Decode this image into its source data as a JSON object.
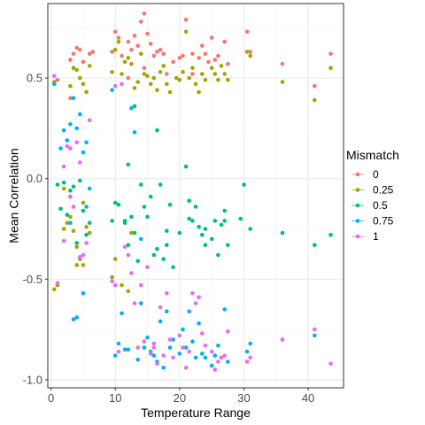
{
  "chart_data": {
    "type": "scatter",
    "title": "",
    "xlabel": "Temperature Range",
    "ylabel": "Mean Correlation",
    "xlim": [
      -0.5,
      45.5
    ],
    "ylim": [
      -1.04,
      0.87
    ],
    "xticks": [
      0,
      10,
      20,
      30,
      40
    ],
    "yticks": [
      -1.0,
      -0.5,
      0.0,
      0.5
    ],
    "xtick_labels": [
      "0",
      "10",
      "20",
      "30",
      "40"
    ],
    "ytick_labels": [
      "-1.0",
      "-0.5",
      "0.0",
      "0.5"
    ],
    "grid": true,
    "legend": {
      "title": "Mismatch",
      "position": "right"
    },
    "series": [
      {
        "name": "0",
        "color": "#F8766D",
        "points": [
          [
            1,
            0.49
          ],
          [
            3,
            0.59
          ],
          [
            3.5,
            0.62
          ],
          [
            4,
            0.65
          ],
          [
            4.5,
            0.64
          ],
          [
            5,
            0.58
          ],
          [
            6,
            0.62
          ],
          [
            6.5,
            0.63
          ],
          [
            9.5,
            0.63
          ],
          [
            10,
            0.73
          ],
          [
            10.5,
            0.7
          ],
          [
            11,
            0.61
          ],
          [
            12,
            0.68
          ],
          [
            12.5,
            0.64
          ],
          [
            13,
            0.71
          ],
          [
            13.5,
            0.66
          ],
          [
            14,
            0.78
          ],
          [
            14.5,
            0.82
          ],
          [
            15,
            0.72
          ],
          [
            15.5,
            0.67
          ],
          [
            16,
            0.61
          ],
          [
            16.5,
            0.63
          ],
          [
            17,
            0.64
          ],
          [
            17.5,
            0.62
          ],
          [
            19,
            0.58
          ],
          [
            20,
            0.6
          ],
          [
            20.5,
            0.61
          ],
          [
            21,
            0.79
          ],
          [
            22,
            0.62
          ],
          [
            23,
            0.6
          ],
          [
            23.5,
            0.66
          ],
          [
            24,
            0.62
          ],
          [
            25,
            0.7
          ],
          [
            25.5,
            0.59
          ],
          [
            26,
            0.61
          ],
          [
            27,
            0.68
          ],
          [
            27.5,
            0.57
          ],
          [
            30.5,
            0.73
          ],
          [
            31,
            0.63
          ],
          [
            36,
            0.57
          ],
          [
            41,
            0.46
          ],
          [
            43.5,
            0.62
          ],
          [
            12,
            0.5
          ],
          [
            14.5,
            0.55
          ],
          [
            18,
            0.52
          ],
          [
            22,
            0.52
          ],
          [
            24.5,
            0.58
          ],
          [
            3,
            0.4
          ]
        ]
      },
      {
        "name": "0.25",
        "color": "#A3A500",
        "points": [
          [
            0.5,
            0.48
          ],
          [
            3,
            0.46
          ],
          [
            3.5,
            0.55
          ],
          [
            4,
            0.54
          ],
          [
            4.5,
            0.5
          ],
          [
            5,
            0.47
          ],
          [
            5.5,
            0.43
          ],
          [
            6,
            0.56
          ],
          [
            9.5,
            0.53
          ],
          [
            10,
            0.64
          ],
          [
            10.5,
            0.68
          ],
          [
            11,
            0.52
          ],
          [
            11.5,
            0.58
          ],
          [
            12,
            0.6
          ],
          [
            12.5,
            0.57
          ],
          [
            13,
            0.45
          ],
          [
            13.5,
            0.48
          ],
          [
            14,
            0.62
          ],
          [
            14.5,
            0.52
          ],
          [
            15,
            0.51
          ],
          [
            15.5,
            0.47
          ],
          [
            16,
            0.5
          ],
          [
            16.5,
            0.44
          ],
          [
            17,
            0.53
          ],
          [
            17.5,
            0.56
          ],
          [
            18,
            0.47
          ],
          [
            18.5,
            0.43
          ],
          [
            19.5,
            0.5
          ],
          [
            20,
            0.49
          ],
          [
            20.5,
            0.53
          ],
          [
            21,
            0.73
          ],
          [
            21.5,
            0.5
          ],
          [
            22,
            0.55
          ],
          [
            22.5,
            0.47
          ],
          [
            23,
            0.43
          ],
          [
            23.5,
            0.52
          ],
          [
            24,
            0.49
          ],
          [
            25,
            0.55
          ],
          [
            25.5,
            0.52
          ],
          [
            26,
            0.49
          ],
          [
            26.5,
            0.56
          ],
          [
            27,
            0.52
          ],
          [
            27.5,
            0.49
          ],
          [
            30.5,
            0.63
          ],
          [
            31,
            0.61
          ],
          [
            36,
            0.48
          ],
          [
            41,
            0.39
          ],
          [
            43.5,
            0.55
          ],
          [
            0.5,
            -0.55
          ],
          [
            1,
            -0.53
          ],
          [
            2,
            -0.25
          ],
          [
            2.5,
            -0.22
          ],
          [
            3,
            -0.09
          ],
          [
            3.5,
            -0.26
          ],
          [
            4,
            -0.34
          ],
          [
            4.5,
            -0.4
          ],
          [
            5,
            -0.43
          ],
          [
            5.5,
            -0.24
          ],
          [
            6,
            -0.27
          ],
          [
            9.5,
            -0.49
          ],
          [
            10,
            -0.4
          ],
          [
            11,
            -0.53
          ],
          [
            12,
            -0.56
          ],
          [
            12.5,
            -0.27
          ],
          [
            2,
            -0.05
          ],
          [
            3,
            -0.19
          ],
          [
            4,
            -0.43
          ],
          [
            5,
            -0.12
          ]
        ]
      },
      {
        "name": "0.5",
        "color": "#00BF7D",
        "points": [
          [
            1,
            -0.03
          ],
          [
            1.5,
            -0.15
          ],
          [
            2,
            -0.02
          ],
          [
            2.5,
            -0.18
          ],
          [
            3,
            -0.06
          ],
          [
            3.5,
            -0.04
          ],
          [
            4,
            -0.32
          ],
          [
            4.5,
            -0.01
          ],
          [
            5,
            -0.16
          ],
          [
            5.5,
            -0.28
          ],
          [
            6,
            -0.22
          ],
          [
            9.5,
            -0.21
          ],
          [
            10,
            -0.12
          ],
          [
            10.5,
            -0.13
          ],
          [
            11.5,
            -0.21
          ],
          [
            12,
            0.07
          ],
          [
            12.5,
            -0.19
          ],
          [
            13,
            -0.27
          ],
          [
            13.5,
            -0.41
          ],
          [
            14.5,
            -0.14
          ],
          [
            15,
            -0.19
          ],
          [
            15.5,
            -0.09
          ],
          [
            16,
            -0.38
          ],
          [
            16.5,
            -0.35
          ],
          [
            17,
            -0.03
          ],
          [
            17.5,
            -0.4
          ],
          [
            18,
            -0.33
          ],
          [
            18.5,
            -0.13
          ],
          [
            19,
            -0.44
          ],
          [
            20,
            -0.27
          ],
          [
            21,
            0.06
          ],
          [
            21.5,
            -0.11
          ],
          [
            22,
            -0.21
          ],
          [
            22.5,
            -0.14
          ],
          [
            23,
            -0.24
          ],
          [
            23.5,
            -0.28
          ],
          [
            24,
            -0.33
          ],
          [
            25,
            -0.3
          ],
          [
            25.5,
            -0.21
          ],
          [
            26,
            -0.38
          ],
          [
            26.5,
            -0.23
          ],
          [
            27,
            -0.16
          ],
          [
            27.5,
            -0.33
          ],
          [
            29.5,
            -0.2
          ],
          [
            30,
            -0.03
          ],
          [
            31,
            -0.25
          ],
          [
            36,
            -0.27
          ],
          [
            41,
            -0.33
          ],
          [
            43.5,
            -0.28
          ],
          [
            13,
            0.36
          ],
          [
            11.5,
            -0.22
          ],
          [
            16.5,
            0.24
          ],
          [
            27,
            -0.21
          ],
          [
            24,
            -0.25
          ],
          [
            14,
            -0.03
          ],
          [
            12,
            -0.33
          ],
          [
            18,
            -0.26
          ],
          [
            21.5,
            -0.2
          ]
        ]
      },
      {
        "name": "0.75",
        "color": "#00B0F6",
        "points": [
          [
            0.5,
            0.47
          ],
          [
            1.5,
            0.15
          ],
          [
            2,
            0.24
          ],
          [
            2.5,
            0.19
          ],
          [
            3,
            0.27
          ],
          [
            3.5,
            0.4
          ],
          [
            4,
            0.25
          ],
          [
            4.5,
            0.32
          ],
          [
            5,
            0.13
          ],
          [
            5.5,
            0.18
          ],
          [
            6,
            -0.05
          ],
          [
            9.5,
            0.44
          ],
          [
            10,
            -0.88
          ],
          [
            10.5,
            -0.82
          ],
          [
            11,
            -0.67
          ],
          [
            11.5,
            -0.85
          ],
          [
            12.5,
            0.35
          ],
          [
            13,
            0.23
          ],
          [
            13.5,
            -0.9
          ],
          [
            14,
            -0.62
          ],
          [
            14.5,
            -0.84
          ],
          [
            15,
            -0.79
          ],
          [
            15.5,
            -0.86
          ],
          [
            16,
            -0.88
          ],
          [
            16.5,
            -0.91
          ],
          [
            17,
            -0.71
          ],
          [
            17.5,
            -0.94
          ],
          [
            18,
            -0.66
          ],
          [
            18.5,
            -0.84
          ],
          [
            19,
            -0.8
          ],
          [
            20,
            -0.87
          ],
          [
            20.5,
            -0.75
          ],
          [
            21,
            -0.84
          ],
          [
            21.5,
            -0.66
          ],
          [
            22,
            -0.81
          ],
          [
            22.5,
            -0.89
          ],
          [
            23,
            -0.72
          ],
          [
            23.5,
            -0.87
          ],
          [
            24,
            -0.89
          ],
          [
            25,
            -0.93
          ],
          [
            25.5,
            -0.88
          ],
          [
            26,
            -0.83
          ],
          [
            26.5,
            -0.89
          ],
          [
            27,
            -0.65
          ],
          [
            27.5,
            -0.91
          ],
          [
            30.5,
            -0.86
          ],
          [
            31,
            -0.82
          ],
          [
            36,
            -0.8
          ],
          [
            41,
            -0.78
          ],
          [
            3.5,
            -0.7
          ],
          [
            4,
            -0.69
          ],
          [
            5,
            -0.57
          ],
          [
            12,
            -0.85
          ],
          [
            14,
            -0.3
          ],
          [
            5.5,
            -0.14
          ],
          [
            3,
            -0.22
          ]
        ]
      },
      {
        "name": "1",
        "color": "#E76BF3",
        "points": [
          [
            0.5,
            0.51
          ],
          [
            1,
            -0.52
          ],
          [
            2,
            0.06
          ],
          [
            2.5,
            0.16
          ],
          [
            3,
            -0.09
          ],
          [
            3.5,
            -0.14
          ],
          [
            4,
            0.18
          ],
          [
            4.5,
            0.08
          ],
          [
            5,
            -0.38
          ],
          [
            5.5,
            -0.32
          ],
          [
            6,
            0.29
          ],
          [
            9.5,
            -0.51
          ],
          [
            10,
            0.46
          ],
          [
            10.5,
            -0.86
          ],
          [
            11,
            0.47
          ],
          [
            11.5,
            -0.34
          ],
          [
            12,
            -0.38
          ],
          [
            12.5,
            -0.47
          ],
          [
            13,
            -0.62
          ],
          [
            13.5,
            -0.84
          ],
          [
            14,
            -0.53
          ],
          [
            14.5,
            -0.81
          ],
          [
            15,
            -0.44
          ],
          [
            15.5,
            -0.87
          ],
          [
            16,
            -0.84
          ],
          [
            16.5,
            -0.92
          ],
          [
            17,
            -0.64
          ],
          [
            17.5,
            -0.88
          ],
          [
            18,
            -0.57
          ],
          [
            18.5,
            -0.8
          ],
          [
            19,
            -0.89
          ],
          [
            20,
            -0.78
          ],
          [
            20.5,
            -0.84
          ],
          [
            21,
            -0.94
          ],
          [
            21.5,
            -0.86
          ],
          [
            22,
            -0.57
          ],
          [
            22.5,
            -0.62
          ],
          [
            23,
            -0.59
          ],
          [
            23.5,
            -0.77
          ],
          [
            24,
            -0.83
          ],
          [
            25,
            -0.86
          ],
          [
            25.5,
            -0.95
          ],
          [
            26,
            -0.91
          ],
          [
            26.5,
            -0.89
          ],
          [
            27,
            -0.88
          ],
          [
            27.5,
            -0.76
          ],
          [
            30.5,
            -0.91
          ],
          [
            31,
            -0.89
          ],
          [
            36,
            -0.8
          ],
          [
            41,
            -0.75
          ],
          [
            43.5,
            -0.92
          ],
          [
            2,
            -0.31
          ],
          [
            3,
            0.15
          ],
          [
            4.5,
            -0.39
          ],
          [
            10,
            -0.53
          ],
          [
            16,
            -0.82
          ]
        ]
      }
    ]
  }
}
